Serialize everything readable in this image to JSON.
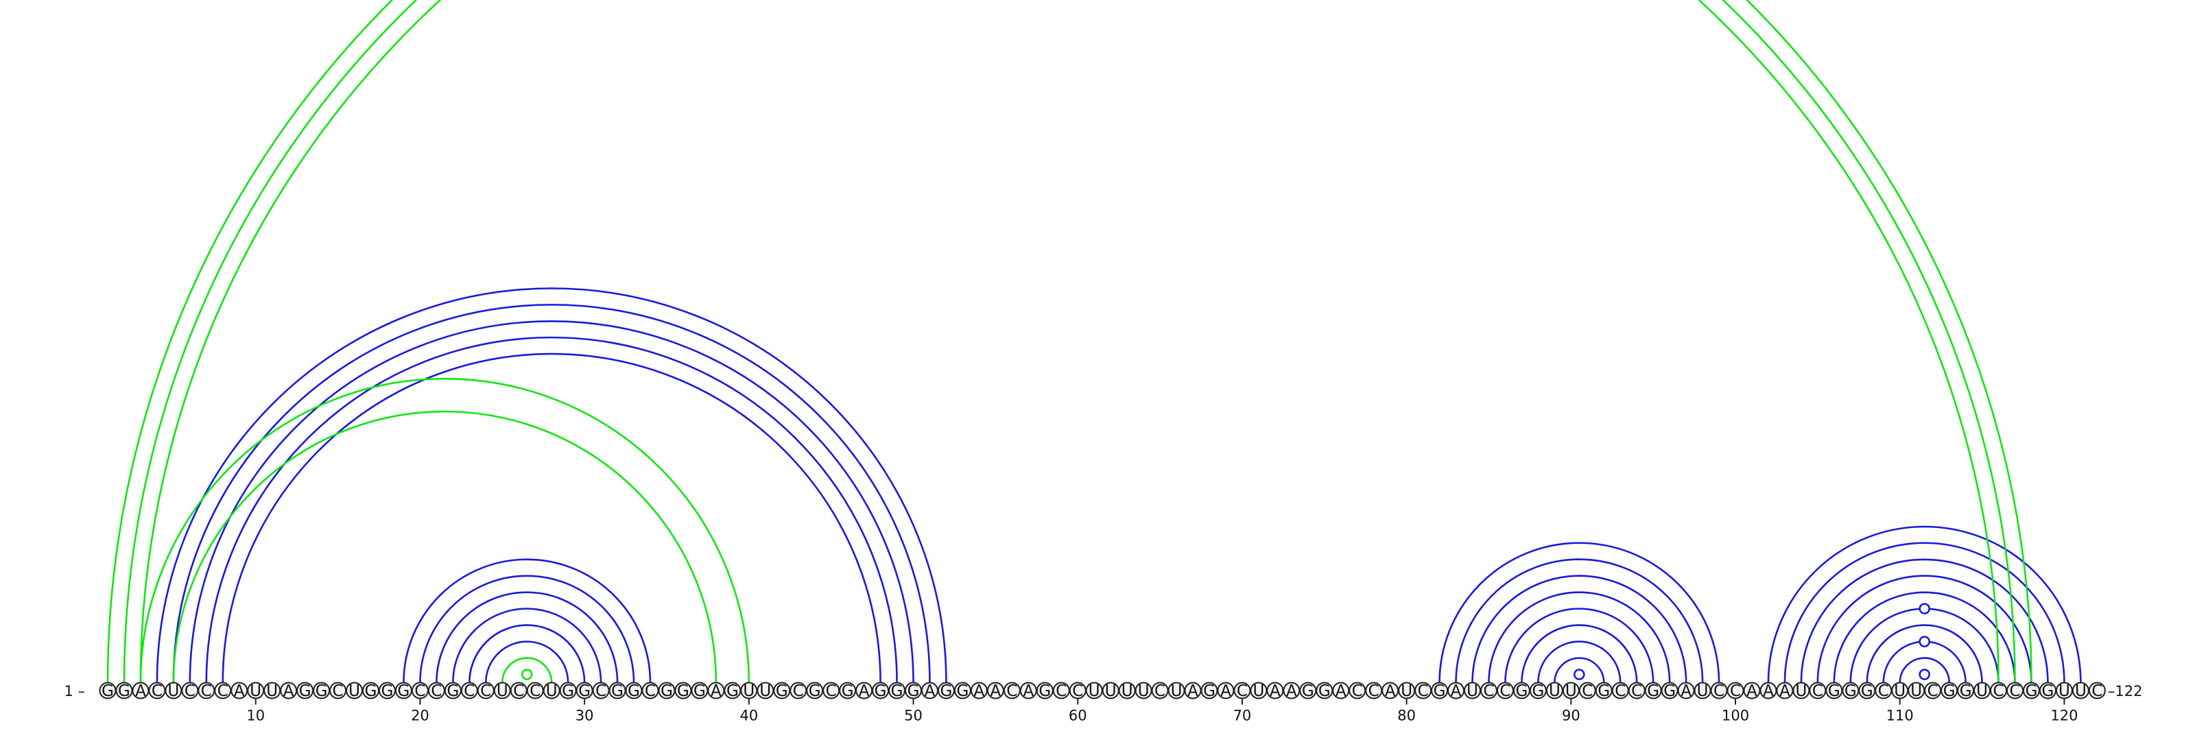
{
  "diagram": {
    "type": "rna-arc-diagram",
    "sequence": "GGACUCCCAUUAGGCUGGGCCGCCUCCUGGCGGCGGGAGUUGCGCGAGGGAGGAACAGCCUUUUCUAGACUAAGGACCAUCGAUCCGGUUCGCCGGAUCCAAAUCGGGCUUCGGUCCGGUUC",
    "start_label": "1 –",
    "end_label": "–122",
    "tick_positions": [
      10,
      20,
      30,
      40,
      50,
      60,
      70,
      80,
      90,
      100,
      110,
      120
    ],
    "tick_labels": [
      "10",
      "20",
      "30",
      "40",
      "50",
      "60",
      "70",
      "80",
      "90",
      "100",
      "110",
      "120"
    ],
    "colors": {
      "blue_arcs": "#1a1adc",
      "green_arcs": "#11e611",
      "circle_fill": "#f4f4f4",
      "circle_stroke": "#222222"
    }
  },
  "chart_data": {
    "type": "arc",
    "length": 122,
    "blue_pairs": [
      [
        4,
        52
      ],
      [
        5,
        51
      ],
      [
        6,
        50
      ],
      [
        7,
        49
      ],
      [
        8,
        48
      ],
      [
        19,
        34
      ],
      [
        20,
        33
      ],
      [
        21,
        32
      ],
      [
        22,
        31
      ],
      [
        23,
        30
      ],
      [
        24,
        29
      ],
      [
        82,
        99
      ],
      [
        83,
        98
      ],
      [
        84,
        97
      ],
      [
        85,
        96
      ],
      [
        86,
        95
      ],
      [
        87,
        94
      ],
      [
        88,
        93
      ],
      [
        89,
        92
      ],
      [
        102,
        121
      ],
      [
        103,
        120
      ],
      [
        104,
        119
      ],
      [
        105,
        118
      ],
      [
        106,
        117
      ],
      [
        107,
        116
      ],
      [
        108,
        115
      ],
      [
        109,
        114
      ],
      [
        110,
        113
      ]
    ],
    "green_pairs": [
      [
        1,
        118
      ],
      [
        2,
        117
      ],
      [
        3,
        116
      ],
      [
        3,
        40
      ],
      [
        5,
        38
      ],
      [
        25,
        28
      ]
    ],
    "open_markers": [
      [
        90,
        91
      ],
      [
        111,
        112
      ]
    ],
    "filled_markers": [
      [
        26,
        27
      ]
    ]
  }
}
